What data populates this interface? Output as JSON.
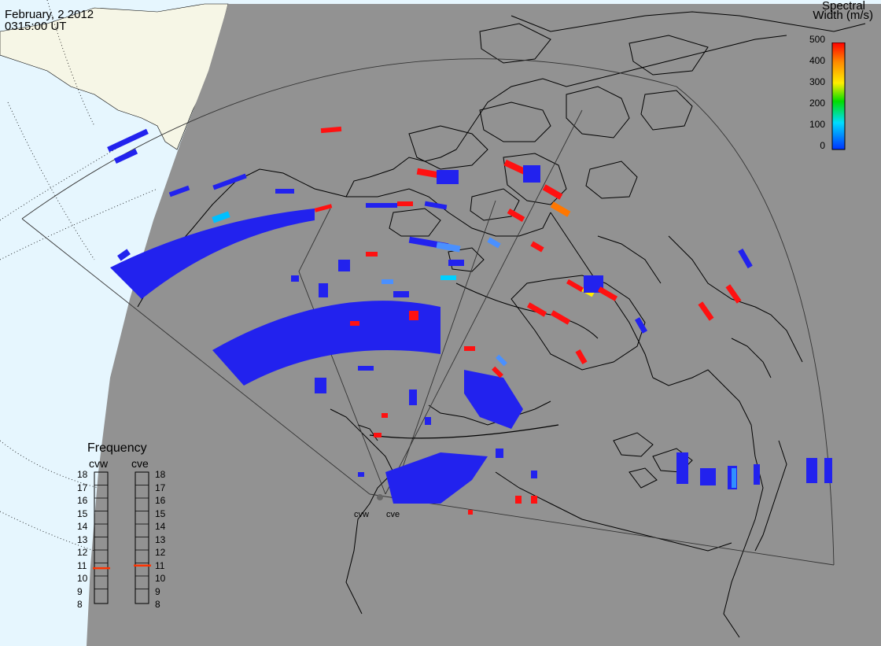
{
  "header": {
    "date": "February, 2 2012",
    "time": "0315:00 UT"
  },
  "colorbar": {
    "title_line1": "Spectral",
    "title_line2": "Width (m/s)",
    "ticks": [
      "500",
      "400",
      "300",
      "200",
      "100",
      "0"
    ],
    "colors": [
      "#ff0000",
      "#ff8800",
      "#ffee00",
      "#00dd00",
      "#00ddff",
      "#0033ff"
    ]
  },
  "frequency": {
    "title": "Frequency",
    "radar_left": "cvw",
    "radar_right": "cve",
    "scale": [
      "18",
      "17",
      "16",
      "15",
      "14",
      "13",
      "12",
      "11",
      "10",
      "9",
      "8"
    ],
    "cvw_value_mhz": 10.6,
    "cve_value_mhz": 10.8,
    "indicator_color": "#ff3300"
  },
  "radars": {
    "west_label": "cvw",
    "east_label": "cve"
  },
  "colors": {
    "ocean": "#e6f6fe",
    "night": "#929292",
    "day_land": "#f6f6e6",
    "scatter_main": "#2222ee",
    "high_width": "#ff1111"
  }
}
